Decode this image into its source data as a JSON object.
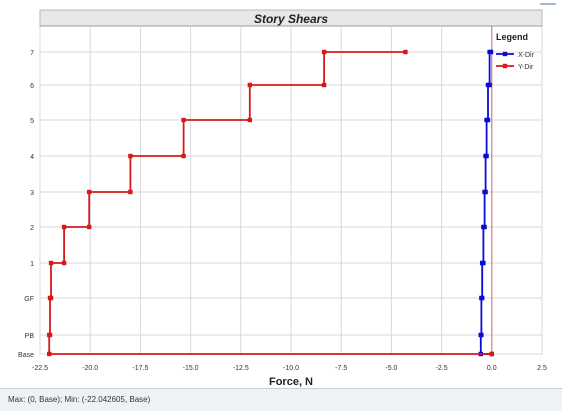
{
  "window": {
    "status_text": "Max: (0, Base);  Min: (-22.042605, Base)"
  },
  "colors": {
    "x_dir": "#0a0ad6",
    "y_dir": "#d61a1a",
    "zero_line": "#d66a6a",
    "grid": "#d8d8d8",
    "title_bg": "#e8e8e8"
  },
  "chart_data": {
    "type": "line",
    "title": "Story Shears",
    "xlabel": "Force, N",
    "ylabel": "",
    "xlim": [
      -22.5,
      2.5
    ],
    "x_ticks": [
      "-22.5",
      "-20.0",
      "-17.5",
      "-15.0",
      "-12.5",
      "-10.0",
      "-7.5",
      "-5.0",
      "-2.5",
      "0.0",
      "2.5"
    ],
    "x_tick_values": [
      -22.5,
      -20,
      -17.5,
      -15,
      -12.5,
      -10,
      -7.5,
      -5,
      -2.5,
      0,
      2.5
    ],
    "categories": [
      "Base",
      "PB",
      "GF",
      "1",
      "2",
      "3",
      "4",
      "5",
      "6",
      "7"
    ],
    "grid": true,
    "legend": {
      "title": "Legend",
      "placement": "top-right"
    },
    "series": [
      {
        "name": "X-Dir",
        "color": "#0a0ad6",
        "points": [
          {
            "x": -0.55,
            "story": "Base"
          },
          {
            "x": -0.52,
            "story": "PB"
          },
          {
            "x": -0.48,
            "story": "GF"
          },
          {
            "x": -0.42,
            "story": "1"
          },
          {
            "x": -0.36,
            "story": "2"
          },
          {
            "x": -0.31,
            "story": "3"
          },
          {
            "x": -0.26,
            "story": "4"
          },
          {
            "x": -0.19,
            "story": "5"
          },
          {
            "x": -0.11,
            "story": "6"
          },
          {
            "x": -0.04,
            "story": "7"
          }
        ]
      },
      {
        "name": "Y-Dir",
        "color": "#d61a1a",
        "points": [
          {
            "x": -22.04,
            "story": "Base"
          },
          {
            "x": -22.0,
            "story": "PB"
          },
          {
            "x": -21.95,
            "story": "GF"
          },
          {
            "x": -21.3,
            "story": "1"
          },
          {
            "x": -20.05,
            "story": "2"
          },
          {
            "x": -18.0,
            "story": "3"
          },
          {
            "x": -15.35,
            "story": "4"
          },
          {
            "x": -12.05,
            "story": "5"
          },
          {
            "x": -8.35,
            "story": "6"
          },
          {
            "x": -4.3,
            "story": "7"
          }
        ]
      }
    ]
  }
}
